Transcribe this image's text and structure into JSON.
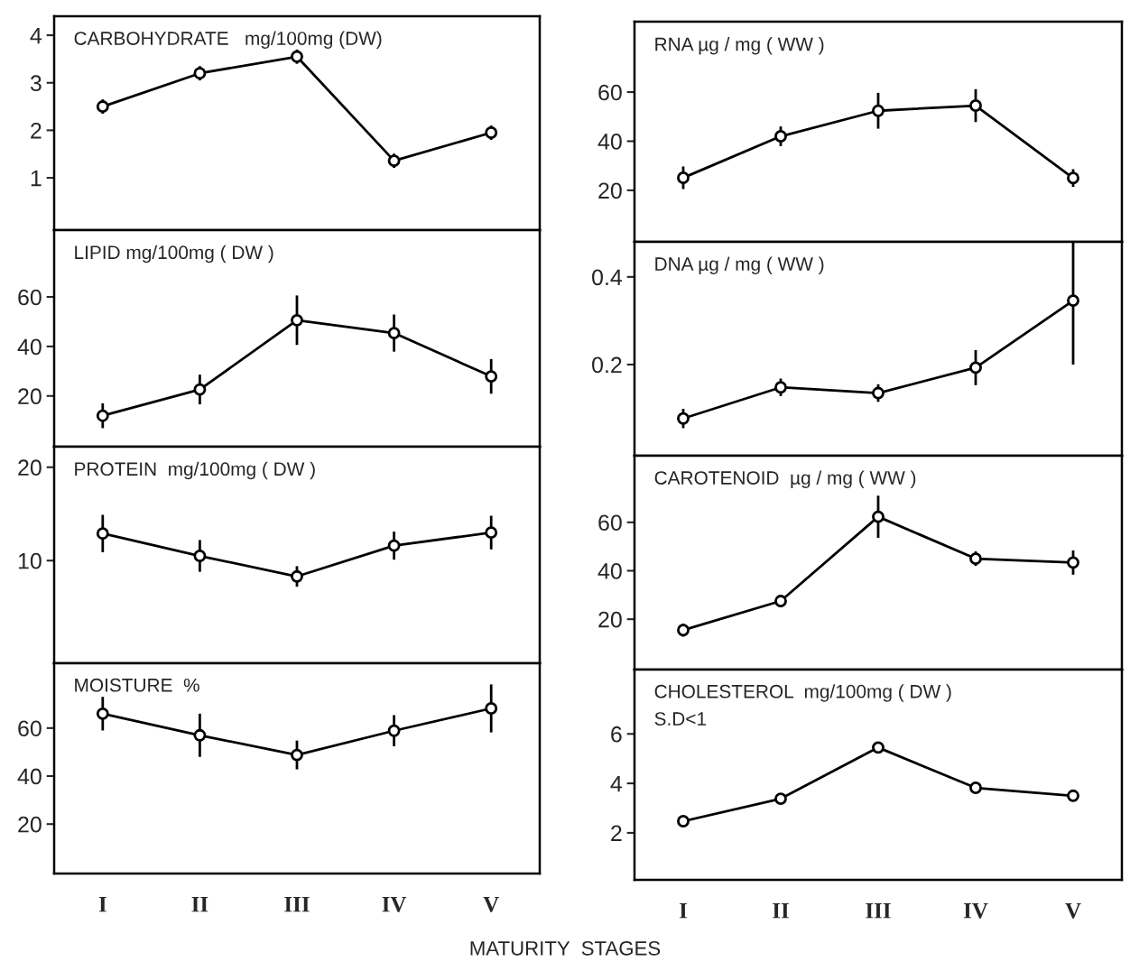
{
  "chart_data": [
    {
      "type": "line",
      "title": "CARBOHYDRATE   mg/100mg (DW)",
      "categories": [
        null,
        null,
        null,
        null,
        null
      ],
      "values": [
        2.5,
        3.2,
        3.55,
        1.36,
        1.95
      ],
      "errors": [
        0.15,
        0.15,
        0.15,
        0.15,
        0.15
      ],
      "ylim": [
        -0.1,
        4.4
      ],
      "yticks": [
        1,
        2,
        3,
        4
      ],
      "color": "#000000",
      "marker": "circle",
      "line_style": "solid",
      "grid": false,
      "legend": false
    },
    {
      "type": "line",
      "title": "LIPID mg/100mg ( DW )",
      "categories": [
        null,
        null,
        null,
        null,
        null
      ],
      "values": [
        12,
        22.6,
        50.6,
        45.4,
        27.9
      ],
      "errors": [
        5,
        6,
        10,
        7.5,
        7
      ],
      "ylim": [
        -0.5,
        87
      ],
      "yticks": [
        20,
        40,
        60
      ],
      "color": "#000000",
      "marker": "circle",
      "line_style": "solid",
      "grid": false,
      "legend": false
    },
    {
      "type": "line",
      "title": "PROTEIN  mg/100mg ( DW )",
      "categories": [
        null,
        null,
        null,
        null,
        null
      ],
      "values": [
        12.9,
        10.5,
        8.3,
        11.6,
        13.0
      ],
      "errors": [
        2,
        1.7,
        1.1,
        1.5,
        1.8
      ],
      "ylim": [
        -1,
        22.2
      ],
      "yticks": [
        10,
        20
      ],
      "color": "#000000",
      "marker": "circle",
      "line_style": "solid",
      "grid": false,
      "legend": false
    },
    {
      "type": "line",
      "title": "MOISTURE  %",
      "xlabel": "MATURITY  STAGES",
      "categories": [
        "I",
        "II",
        "III",
        "IV",
        "V"
      ],
      "values": [
        66,
        57,
        48.8,
        58.9,
        68.2
      ],
      "errors": [
        7,
        9,
        6,
        6.5,
        10
      ],
      "ylim": [
        -0.6,
        87
      ],
      "yticks": [
        20,
        40,
        60
      ],
      "color": "#000000",
      "marker": "circle",
      "line_style": "solid",
      "grid": false,
      "legend": false
    },
    {
      "type": "line",
      "title": "RNA µg / mg ( WW )",
      "categories": [
        null,
        null,
        null,
        null,
        null
      ],
      "values": [
        25.1,
        42,
        52.4,
        54.5,
        25
      ],
      "errors": [
        4.6,
        4,
        7.3,
        6.7,
        3.6
      ],
      "ylim": [
        -1,
        88.7
      ],
      "yticks": [
        20,
        40,
        60
      ],
      "color": "#000000",
      "marker": "circle",
      "line_style": "solid",
      "grid": false,
      "legend": false
    },
    {
      "type": "line",
      "title": "DNA µg / mg ( WW )",
      "categories": [
        null,
        null,
        null,
        null,
        null
      ],
      "values": [
        0.077,
        0.148,
        0.135,
        0.193,
        0.346
      ],
      "errors": [
        0.022,
        0.02,
        0.02,
        0.04,
        [
          0.2,
          0.48
        ]
      ],
      "ylim": [
        -0.008,
        0.48
      ],
      "yticks": [
        0.2,
        0.4
      ],
      "color": "#000000",
      "marker": "circle",
      "line_style": "solid",
      "grid": false,
      "legend": false
    },
    {
      "type": "line",
      "title": "CAROTENOID  µg / mg ( WW )",
      "categories": [
        null,
        null,
        null,
        null,
        null
      ],
      "values": [
        15.5,
        27.5,
        62.3,
        45,
        43.4
      ],
      "errors": [
        2.7,
        2.6,
        8.7,
        3,
        5
      ],
      "ylim": [
        -0.8,
        87.5
      ],
      "yticks": [
        20,
        40,
        60
      ],
      "color": "#000000",
      "marker": "circle",
      "line_style": "solid",
      "grid": false,
      "legend": false
    },
    {
      "type": "line",
      "title": "CHOLESTEROL  mg/100mg ( DW )",
      "annotations": [
        "S.D<1"
      ],
      "categories": [
        "I",
        "II",
        "III",
        "IV",
        "V"
      ],
      "values": [
        2.47,
        3.38,
        5.45,
        3.82,
        3.5
      ],
      "ylim": [
        0.1,
        8.6
      ],
      "yticks": [
        2,
        4,
        6
      ],
      "color": "#000000",
      "marker": "circle",
      "line_style": "solid",
      "grid": false,
      "legend": false
    }
  ]
}
